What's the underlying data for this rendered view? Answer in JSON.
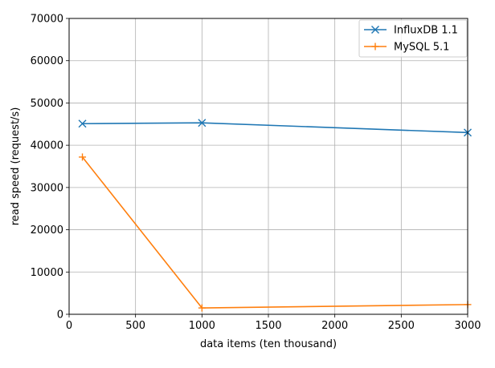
{
  "chart_data": {
    "type": "line",
    "title": "",
    "xlabel": "data items (ten thousand)",
    "ylabel": "read speed (request/s)",
    "xlim": [
      0,
      3000
    ],
    "ylim": [
      0,
      70000
    ],
    "xticks": [
      0,
      500,
      1000,
      1500,
      2000,
      2500,
      3000
    ],
    "yticks": [
      0,
      10000,
      20000,
      30000,
      40000,
      50000,
      60000,
      70000
    ],
    "grid": true,
    "legend_position": "top-right",
    "series": [
      {
        "name": "InfluxDB 1.1",
        "color": "#1f77b4",
        "marker": "x",
        "x": [
          100,
          1000,
          3000
        ],
        "y": [
          45100,
          45300,
          43000
        ]
      },
      {
        "name": "MySQL 5.1",
        "color": "#ff7f0e",
        "marker": "plus",
        "x": [
          100,
          1000,
          3000
        ],
        "y": [
          37200,
          1500,
          2300
        ]
      }
    ]
  }
}
